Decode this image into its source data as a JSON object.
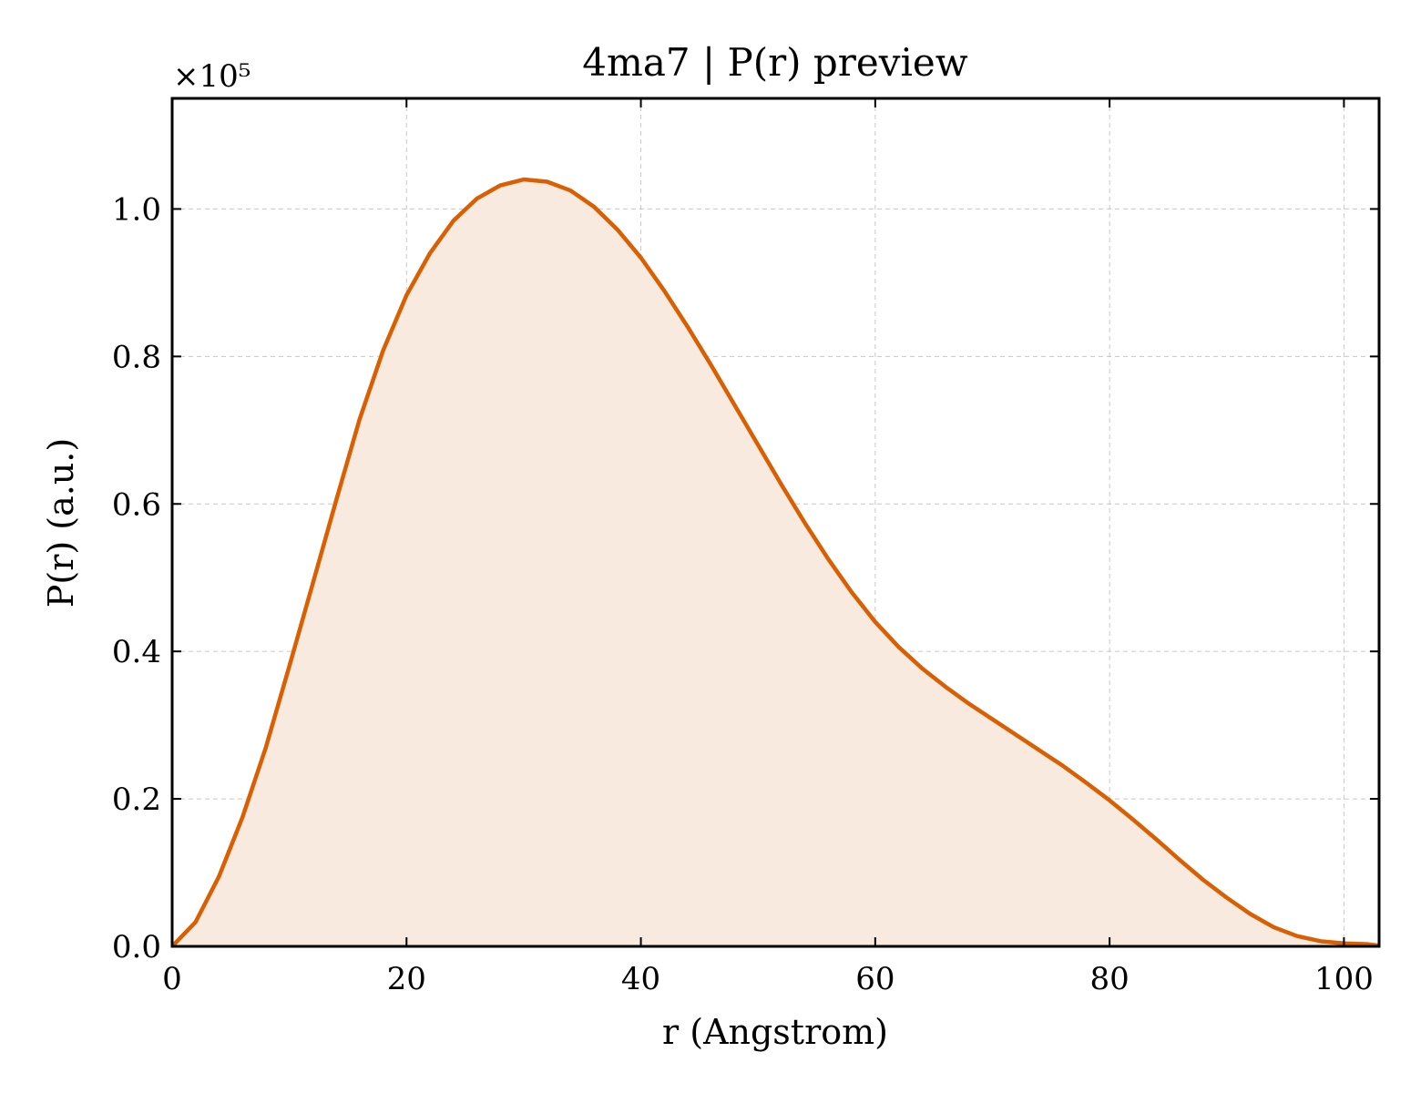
{
  "chart_data": {
    "type": "area",
    "title": "4ma7 | P(r) preview",
    "xlabel": "r (Angstrom)",
    "ylabel": "P(r) (a.u.)",
    "y_offset_text": "×10⁵",
    "y_scale_factor": 100000,
    "xlim": [
      0,
      103
    ],
    "ylim": [
      0,
      1.15
    ],
    "xticks": [
      0,
      20,
      40,
      60,
      80,
      100
    ],
    "xtick_labels": [
      "0",
      "20",
      "40",
      "60",
      "80",
      "100"
    ],
    "yticks": [
      0.0,
      0.2,
      0.4,
      0.6,
      0.8,
      1.0
    ],
    "ytick_labels": [
      "0.0",
      "0.2",
      "0.4",
      "0.6",
      "0.8",
      "1.0"
    ],
    "grid": true,
    "line_color": "#d95f02",
    "fill_color": "#f9eadf",
    "series": [
      {
        "x": [
          0,
          2,
          4,
          6,
          8,
          10,
          12,
          14,
          16,
          18,
          20,
          22,
          24,
          26,
          28,
          30,
          32,
          34,
          36,
          38,
          40,
          42,
          44,
          46,
          48,
          50,
          52,
          54,
          56,
          58,
          60,
          62,
          64,
          66,
          68,
          70,
          72,
          74,
          76,
          78,
          80,
          82,
          84,
          86,
          88,
          90,
          92,
          94,
          96,
          98,
          100,
          102,
          103
        ],
        "y": [
          0.0,
          0.033,
          0.095,
          0.175,
          0.27,
          0.38,
          0.492,
          0.605,
          0.715,
          0.808,
          0.883,
          0.94,
          0.984,
          1.014,
          1.032,
          1.04,
          1.037,
          1.025,
          1.003,
          0.972,
          0.934,
          0.889,
          0.84,
          0.788,
          0.734,
          0.68,
          0.626,
          0.574,
          0.525,
          0.48,
          0.44,
          0.406,
          0.377,
          0.352,
          0.329,
          0.308,
          0.287,
          0.266,
          0.245,
          0.222,
          0.198,
          0.172,
          0.145,
          0.117,
          0.09,
          0.066,
          0.044,
          0.026,
          0.014,
          0.007,
          0.004,
          0.003,
          0.001
        ]
      }
    ]
  }
}
